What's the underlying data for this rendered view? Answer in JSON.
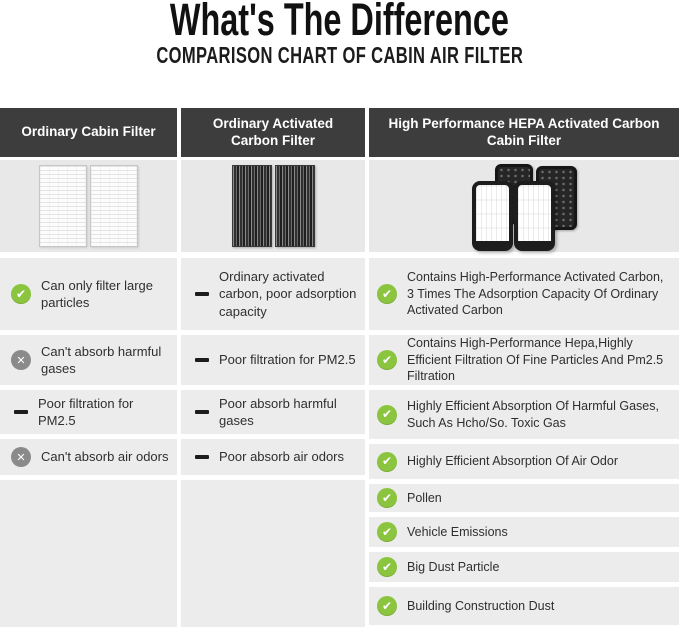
{
  "title": "What's The Difference",
  "subtitle": "COMPARISON CHART OF CABIN AIR FILTER",
  "colors": {
    "header_bg": "#3d3d3d",
    "header_text": "#ffffff",
    "image_cell_bg": "#e8e8e8",
    "row_bg": "#ececec",
    "check_green": "#8bc53f",
    "cross_gray": "#8a8a8a",
    "dash_black": "#1c1c1c",
    "body_text": "#2f2f2f"
  },
  "columns": [
    {
      "header": "Ordinary Cabin Filter",
      "image": "white-pleated-filter-pair",
      "rows": [
        {
          "icon": "check-icon",
          "text": "Can only filter large particles"
        },
        {
          "icon": "cross-icon",
          "text": "Can't absorb harmful gases"
        },
        {
          "icon": "dash-icon",
          "text": "Poor filtration for PM2.5"
        },
        {
          "icon": "cross-icon",
          "text": "Can't absorb air odors"
        }
      ]
    },
    {
      "header": "Ordinary Activated Carbon Filter",
      "image": "carbon-pleated-filter-pair",
      "rows": [
        {
          "icon": "dash-icon",
          "text": "Ordinary activated carbon, poor adsorption capacity"
        },
        {
          "icon": "dash-icon",
          "text": "Poor filtration for PM2.5"
        },
        {
          "icon": "dash-icon",
          "text": "Poor absorb harmful gases"
        },
        {
          "icon": "dash-icon",
          "text": "Poor absorb air odors"
        }
      ]
    },
    {
      "header": "High Performance HEPA Activated Carbon Cabin Filter",
      "image": "hepa-activated-carbon-filter-set",
      "rows": [
        {
          "icon": "check-icon",
          "text": "Contains High-Performance Activated Carbon, 3 Times The Adsorption Capacity Of Ordinary Activated Carbon"
        },
        {
          "icon": "check-icon",
          "text": "Contains High-Performance Hepa,Highly Efficient Filtration Of Fine Particles And Pm2.5 Filtration"
        },
        {
          "icon": "check-icon",
          "text": "Highly Efficient Absorption Of Harmful Gases, Such As Hcho/So. Toxic Gas"
        },
        {
          "icon": "check-icon",
          "text": "Highly Efficient Absorption Of Air Odor"
        },
        {
          "icon": "check-icon",
          "text": "Pollen"
        },
        {
          "icon": "check-icon",
          "text": "Vehicle Emissions"
        },
        {
          "icon": "check-icon",
          "text": "Big Dust Particle"
        },
        {
          "icon": "check-icon",
          "text": "Building Construction Dust"
        }
      ]
    }
  ],
  "chart_data": {
    "type": "table",
    "title": "What's The Difference",
    "subtitle": "COMPARISON CHART OF CABIN AIR FILTER",
    "columns": [
      "Ordinary Cabin Filter",
      "Ordinary Activated Carbon Filter",
      "High Performance HEPA Activated Carbon Cabin Filter"
    ],
    "rows": [
      {
        "column": "Ordinary Cabin Filter",
        "marker": "check",
        "feature": "Can only filter large particles"
      },
      {
        "column": "Ordinary Cabin Filter",
        "marker": "cross",
        "feature": "Can't absorb harmful gases"
      },
      {
        "column": "Ordinary Cabin Filter",
        "marker": "dash",
        "feature": "Poor filtration for PM2.5"
      },
      {
        "column": "Ordinary Cabin Filter",
        "marker": "cross",
        "feature": "Can't absorb air odors"
      },
      {
        "column": "Ordinary Activated Carbon Filter",
        "marker": "dash",
        "feature": "Ordinary activated carbon, poor adsorption capacity"
      },
      {
        "column": "Ordinary Activated Carbon Filter",
        "marker": "dash",
        "feature": "Poor filtration for PM2.5"
      },
      {
        "column": "Ordinary Activated Carbon Filter",
        "marker": "dash",
        "feature": "Poor absorb harmful gases"
      },
      {
        "column": "Ordinary Activated Carbon Filter",
        "marker": "dash",
        "feature": "Poor absorb air odors"
      },
      {
        "column": "High Performance HEPA Activated Carbon Cabin Filter",
        "marker": "check",
        "feature": "Contains High-Performance Activated Carbon, 3 Times The Adsorption Capacity Of Ordinary Activated Carbon"
      },
      {
        "column": "High Performance HEPA Activated Carbon Cabin Filter",
        "marker": "check",
        "feature": "Contains High-Performance Hepa,Highly Efficient Filtration Of Fine Particles And Pm2.5 Filtration"
      },
      {
        "column": "High Performance HEPA Activated Carbon Cabin Filter",
        "marker": "check",
        "feature": "Highly Efficient Absorption Of Harmful Gases, Such As Hcho/So. Toxic Gas"
      },
      {
        "column": "High Performance HEPA Activated Carbon Cabin Filter",
        "marker": "check",
        "feature": "Highly Efficient Absorption Of Air Odor"
      },
      {
        "column": "High Performance HEPA Activated Carbon Cabin Filter",
        "marker": "check",
        "feature": "Pollen"
      },
      {
        "column": "High Performance HEPA Activated Carbon Cabin Filter",
        "marker": "check",
        "feature": "Vehicle Emissions"
      },
      {
        "column": "High Performance HEPA Activated Carbon Cabin Filter",
        "marker": "check",
        "feature": "Big Dust Particle"
      },
      {
        "column": "High Performance HEPA Activated Carbon Cabin Filter",
        "marker": "check",
        "feature": "Building Construction Dust"
      }
    ]
  }
}
